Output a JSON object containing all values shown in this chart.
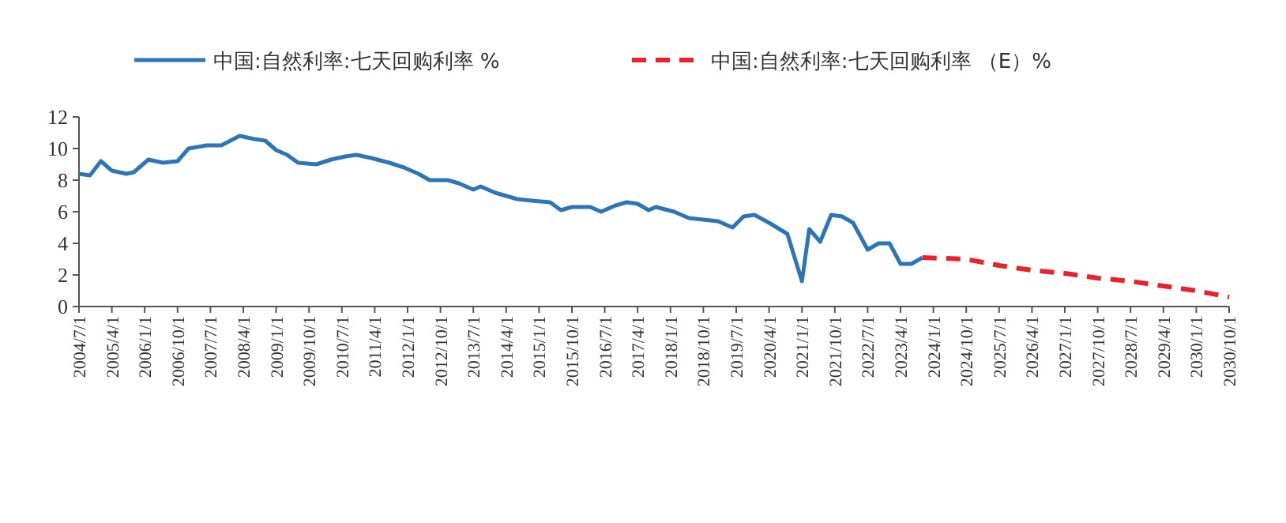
{
  "chart_data": {
    "type": "line",
    "legend": "top",
    "marker": "none",
    "grid": false,
    "xlim": [
      "2004-07-01",
      "2030-10-01"
    ],
    "xticks": [
      {
        "value": "2004-07-01",
        "label": "2004/7/1"
      },
      {
        "value": "2005-04-01",
        "label": "2005/4/1"
      },
      {
        "value": "2006-01-01",
        "label": "2006/1/1"
      },
      {
        "value": "2006-10-01",
        "label": "2006/10/1"
      },
      {
        "value": "2007-07-01",
        "label": "2007/7/1"
      },
      {
        "value": "2008-04-01",
        "label": "2008/4/1"
      },
      {
        "value": "2009-01-01",
        "label": "2009/1/1"
      },
      {
        "value": "2009-10-01",
        "label": "2009/10/1"
      },
      {
        "value": "2010-07-01",
        "label": "2010/7/1"
      },
      {
        "value": "2011-04-01",
        "label": "2011/4/1"
      },
      {
        "value": "2012-01-01",
        "label": "2012/1/1"
      },
      {
        "value": "2012-10-01",
        "label": "2012/10/1"
      },
      {
        "value": "2013-07-01",
        "label": "2013/7/1"
      },
      {
        "value": "2014-04-01",
        "label": "2014/4/1"
      },
      {
        "value": "2015-01-01",
        "label": "2015/1/1"
      },
      {
        "value": "2015-10-01",
        "label": "2015/10/1"
      },
      {
        "value": "2016-07-01",
        "label": "2016/7/1"
      },
      {
        "value": "2017-04-01",
        "label": "2017/4/1"
      },
      {
        "value": "2018-01-01",
        "label": "2018/1/1"
      },
      {
        "value": "2018-10-01",
        "label": "2018/10/1"
      },
      {
        "value": "2019-07-01",
        "label": "2019/7/1"
      },
      {
        "value": "2020-04-01",
        "label": "2020/4/1"
      },
      {
        "value": "2021-01-01",
        "label": "2021/1/1"
      },
      {
        "value": "2021-10-01",
        "label": "2021/10/1"
      },
      {
        "value": "2022-07-01",
        "label": "2022/7/1"
      },
      {
        "value": "2023-04-01",
        "label": "2023/4/1"
      },
      {
        "value": "2024-01-01",
        "label": "2024/1/1"
      },
      {
        "value": "2024-10-01",
        "label": "2024/10/1"
      },
      {
        "value": "2025-07-01",
        "label": "2025/7/1"
      },
      {
        "value": "2026-04-01",
        "label": "2026/4/1"
      },
      {
        "value": "2027-01-01",
        "label": "2027/1/1"
      },
      {
        "value": "2027-10-01",
        "label": "2027/10/1"
      },
      {
        "value": "2028-07-01",
        "label": "2028/7/1"
      },
      {
        "value": "2029-04-01",
        "label": "2029/4/1"
      },
      {
        "value": "2030-01-01",
        "label": "2030/1/1"
      },
      {
        "value": "2030-10-01",
        "label": "2030/10/1"
      }
    ],
    "ylim": [
      0,
      12
    ],
    "yticks": [
      0,
      2,
      4,
      6,
      8,
      10,
      12
    ],
    "series": [
      {
        "name": "中国:自然利率:七天回购利率 %",
        "color": "#2e75b6",
        "line_style": "solid",
        "x": [
          "2004-07",
          "2004-10",
          "2005-01",
          "2005-04",
          "2005-08",
          "2005-10",
          "2006-02",
          "2006-06",
          "2006-10",
          "2007-01",
          "2007-06",
          "2007-10",
          "2008-03",
          "2008-07",
          "2008-10",
          "2009-01",
          "2009-04",
          "2009-07",
          "2009-12",
          "2010-04",
          "2010-08",
          "2010-11",
          "2011-03",
          "2011-08",
          "2011-12",
          "2012-04",
          "2012-07",
          "2012-12",
          "2013-03",
          "2013-07",
          "2013-09",
          "2014-01",
          "2014-07",
          "2014-11",
          "2015-04",
          "2015-07",
          "2015-10",
          "2016-03",
          "2016-06",
          "2016-10",
          "2017-01",
          "2017-04",
          "2017-07",
          "2017-09",
          "2018-02",
          "2018-06",
          "2018-10",
          "2019-02",
          "2019-06",
          "2019-09",
          "2019-12",
          "2020-04",
          "2020-09",
          "2021-01",
          "2021-03",
          "2021-06",
          "2021-09",
          "2021-12",
          "2022-03",
          "2022-07",
          "2022-10",
          "2023-01",
          "2023-04",
          "2023-07",
          "2023-10"
        ],
        "values": [
          8.4,
          8.3,
          9.2,
          8.6,
          8.4,
          8.5,
          9.3,
          9.1,
          9.2,
          10.0,
          10.2,
          10.2,
          10.8,
          10.6,
          10.5,
          9.9,
          9.6,
          9.1,
          9.0,
          9.3,
          9.5,
          9.6,
          9.4,
          9.1,
          8.8,
          8.4,
          8.0,
          8.0,
          7.8,
          7.4,
          7.6,
          7.2,
          6.8,
          6.7,
          6.6,
          6.1,
          6.3,
          6.3,
          6.0,
          6.4,
          6.6,
          6.5,
          6.1,
          6.3,
          6.0,
          5.6,
          5.5,
          5.4,
          5.0,
          5.7,
          5.8,
          5.3,
          4.6,
          1.6,
          4.9,
          4.1,
          5.8,
          5.7,
          5.3,
          3.6,
          4.0,
          4.0,
          2.7,
          2.7,
          3.1
        ]
      },
      {
        "name": "中国:自然利率:七天回购利率 （E）%",
        "color": "#e8212b",
        "line_style": "dashed",
        "x": [
          "2023-10",
          "2024-10",
          "2025-07",
          "2026-04",
          "2027-01",
          "2027-10",
          "2028-07",
          "2029-04",
          "2030-01",
          "2030-10"
        ],
        "values": [
          3.1,
          3.0,
          2.6,
          2.3,
          2.1,
          1.8,
          1.6,
          1.3,
          1.0,
          0.6
        ]
      }
    ]
  }
}
